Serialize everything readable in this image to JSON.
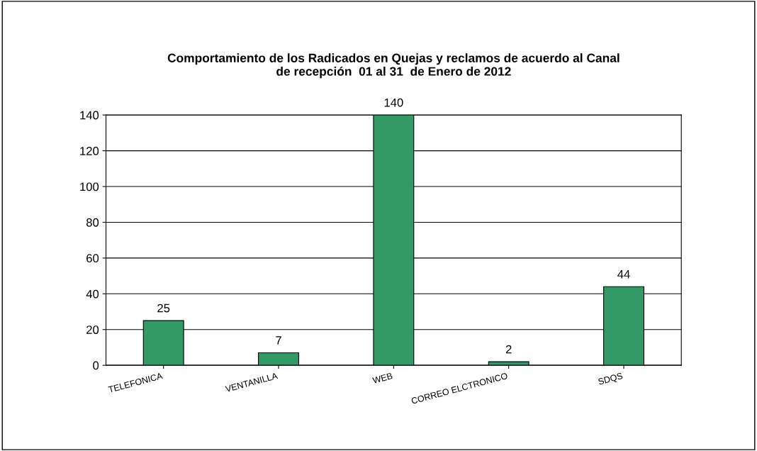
{
  "chart_data": {
    "type": "bar",
    "title": "Comportamiento de los Radicados en Quejas y reclamos de acuerdo al Canal\nde recepción  01 al 31  de Enero de 2012",
    "categories": [
      "TELEFONICA",
      "VENTANILLA",
      "WEB",
      "CORREO ELCTRONICO",
      "SDQS"
    ],
    "values": [
      25,
      7,
      140,
      2,
      44
    ],
    "color": "#339966",
    "ylim": [
      0,
      140
    ],
    "yticks": [
      0,
      20,
      40,
      60,
      80,
      100,
      120,
      140
    ],
    "grid": "y",
    "data_labels": true
  }
}
